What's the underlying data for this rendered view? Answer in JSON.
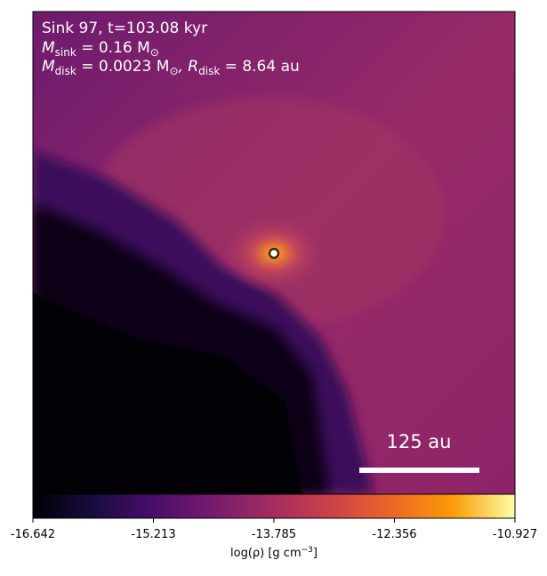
{
  "chart_data": {
    "type": "density-map",
    "annotations": [
      {
        "text": "Sink 97, t=103.08 kyr"
      },
      {
        "symbol": "M",
        "subscript": "sink",
        "text": " = 0.16 M",
        "unit_subscript": "⊙"
      },
      {
        "symbol": "M",
        "subscript": "disk",
        "text": " = 0.0023 M",
        "unit_subscript": "⊙",
        "text2": ", R",
        "subscript2": "disk",
        "text3": " = 8.64 au"
      }
    ],
    "scale_bar": "125 au",
    "colorbar": {
      "cmap": "inferno",
      "xlim": [
        -16.642,
        -10.927
      ],
      "xticks": [
        -16.642,
        -15.213,
        -13.785,
        -12.356,
        -10.927
      ],
      "label": {
        "text": "log(ρ) [g cm",
        "superscript": "−3",
        "end": "]"
      }
    }
  }
}
